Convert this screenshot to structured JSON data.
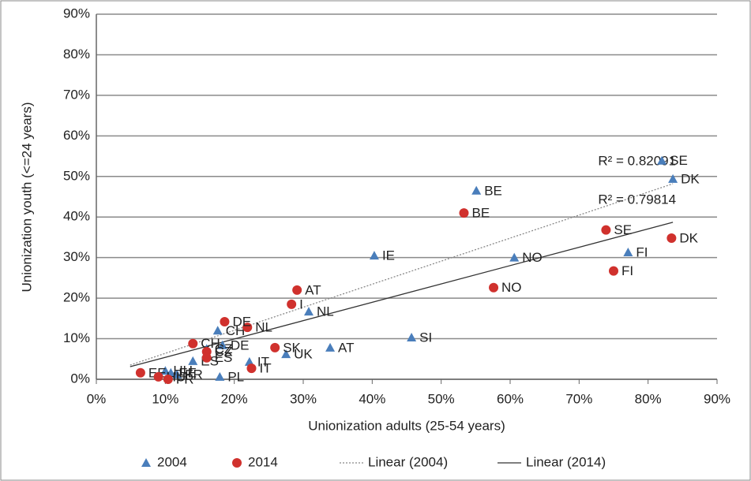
{
  "chart_data": {
    "type": "scatter",
    "xlabel": "Unionization adults (25-54 years)",
    "ylabel": "Unionization youth (<=24 years)",
    "xlim": [
      0,
      90
    ],
    "ylim": [
      0,
      90
    ],
    "xticks": [
      {
        "value": 0,
        "label": "0%"
      },
      {
        "value": 10,
        "label": "10%"
      },
      {
        "value": 20,
        "label": "20%"
      },
      {
        "value": 30,
        "label": "30%"
      },
      {
        "value": 40,
        "label": "40%"
      },
      {
        "value": 50,
        "label": "50%"
      },
      {
        "value": 60,
        "label": "60%"
      },
      {
        "value": 70,
        "label": "70%"
      },
      {
        "value": 80,
        "label": "80%"
      },
      {
        "value": 90,
        "label": "90%"
      }
    ],
    "yticks": [
      {
        "value": 0,
        "label": "0%"
      },
      {
        "value": 10,
        "label": "10%"
      },
      {
        "value": 20,
        "label": "20%"
      },
      {
        "value": 30,
        "label": "30%"
      },
      {
        "value": 40,
        "label": "40%"
      },
      {
        "value": 50,
        "label": "50%"
      },
      {
        "value": 60,
        "label": "60%"
      },
      {
        "value": 70,
        "label": "70%"
      },
      {
        "value": 80,
        "label": "80%"
      },
      {
        "value": 90,
        "label": "90%"
      }
    ],
    "grid": true,
    "series": [
      {
        "name": "2004",
        "color": "#4a7ebb",
        "marker": "triangle",
        "labels": [
          "SE",
          "DK",
          "BE",
          "IE",
          "NO",
          "FI",
          "NL",
          "SI",
          "AT",
          "UK",
          "CH",
          "DE",
          "CZ",
          "ES",
          "IT",
          "PL",
          "FR",
          "EE",
          "HU"
        ],
        "x": [
          82,
          83.6,
          55.1,
          40.3,
          60.6,
          77.1,
          30.8,
          45.7,
          33.9,
          27.5,
          17.6,
          18.3,
          16,
          14,
          22.2,
          17.9,
          11.7,
          10.8,
          10
        ],
        "values": [
          53.9,
          49.4,
          46.5,
          30.5,
          30,
          31.3,
          16.7,
          10.3,
          7.8,
          6.2,
          12,
          8.4,
          7.5,
          4.5,
          4.3,
          0.6,
          1.2,
          1.6,
          2.1
        ]
      },
      {
        "name": "2014",
        "color": "#d0312d",
        "marker": "circle",
        "labels": [
          "SE",
          "DK",
          "BE",
          "FI",
          "NO",
          "AT",
          "I",
          "NL",
          "DE",
          "CH",
          "SK",
          "IT",
          "CZ",
          "ES",
          "EE",
          "HU",
          "FR"
        ],
        "x": [
          73.9,
          83.4,
          53.3,
          75,
          57.6,
          29.1,
          28.3,
          21.9,
          18.6,
          14,
          25.9,
          22.5,
          16,
          16,
          6.4,
          9,
          10.4
        ],
        "values": [
          36.8,
          34.8,
          41,
          26.7,
          22.6,
          22,
          18.5,
          12.8,
          14.2,
          8.8,
          7.8,
          2.7,
          6.8,
          5.3,
          1.6,
          0.6,
          0
        ]
      }
    ],
    "trendlines": [
      {
        "name": "Linear  (2004)",
        "x": [
          4.9,
          83.6
        ],
        "y": [
          3.5,
          48.2
        ],
        "color": "#888888",
        "dash": true,
        "r2": "R² = 0.82091"
      },
      {
        "name": "Linear  (2014)",
        "x": [
          4.9,
          83.6
        ],
        "y": [
          3.1,
          38.7
        ],
        "color": "#333333",
        "dash": false,
        "r2": "R² = 0.79814"
      }
    ],
    "legend": "bottom"
  }
}
